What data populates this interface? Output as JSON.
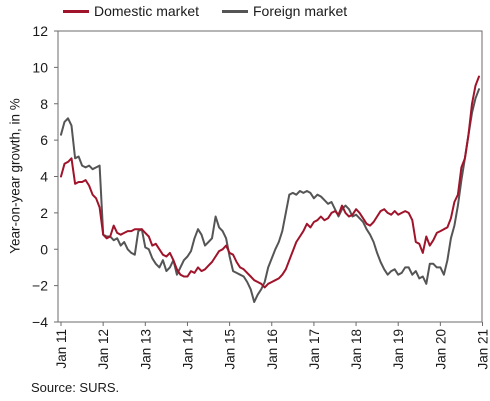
{
  "chart_data": {
    "type": "line",
    "title": "",
    "ylabel": "Year-on-year growth, in %",
    "ylim": [
      -4,
      12
    ],
    "yticks": [
      -4,
      -2,
      0,
      2,
      4,
      6,
      8,
      10,
      12
    ],
    "x_start": "Jan 11",
    "x_tick_labels": [
      "Jan 11",
      "Jan 12",
      "Jan 13",
      "Jan 14",
      "Jan 15",
      "Jan 16",
      "Jan 17",
      "Jan 18",
      "Jan 19",
      "Jan 20",
      "Jan 21"
    ],
    "grid": false,
    "legend_position": "top",
    "series": [
      {
        "name": "Domestic market",
        "color": "#a0142b",
        "values": [
          4.0,
          4.7,
          4.8,
          5.0,
          3.6,
          3.7,
          3.7,
          3.8,
          3.5,
          3.0,
          2.8,
          2.3,
          0.8,
          0.6,
          0.7,
          1.3,
          0.9,
          0.8,
          0.9,
          1.0,
          1.0,
          1.1,
          1.1,
          1.1,
          0.9,
          0.7,
          0.2,
          0.3,
          0.0,
          -0.3,
          -0.4,
          -0.2,
          -0.6,
          -1.1,
          -1.4,
          -1.5,
          -1.5,
          -1.2,
          -1.3,
          -1.0,
          -1.2,
          -1.1,
          -0.9,
          -0.7,
          -0.4,
          -0.1,
          0.0,
          0.2,
          -0.2,
          -0.3,
          -0.7,
          -1.0,
          -1.1,
          -1.3,
          -1.5,
          -1.7,
          -1.8,
          -1.9,
          -2.1,
          -1.9,
          -1.8,
          -1.7,
          -1.6,
          -1.4,
          -1.1,
          -0.6,
          -0.1,
          0.4,
          0.7,
          1.0,
          1.4,
          1.2,
          1.5,
          1.6,
          1.8,
          1.6,
          1.7,
          2.0,
          2.1,
          1.9,
          2.4,
          2.0,
          1.8,
          1.9,
          2.2,
          2.0,
          1.7,
          1.4,
          1.3,
          1.5,
          1.8,
          2.1,
          2.2,
          2.0,
          1.9,
          2.1,
          1.9,
          2.0,
          2.1,
          2.0,
          1.6,
          0.4,
          0.3,
          -0.2,
          0.7,
          0.2,
          0.5,
          0.9,
          1.0,
          1.1,
          1.2,
          1.7,
          2.6,
          3.0,
          4.5,
          5.0,
          6.3,
          8.0,
          9.0,
          9.5
        ]
      },
      {
        "name": "Foreign market",
        "color": "#555555",
        "values": [
          6.3,
          7.0,
          7.2,
          6.8,
          5.0,
          5.1,
          4.6,
          4.5,
          4.6,
          4.4,
          4.5,
          4.6,
          0.8,
          0.7,
          0.7,
          0.5,
          0.6,
          0.2,
          0.4,
          0.0,
          -0.2,
          -0.3,
          1.0,
          1.1,
          0.1,
          0.0,
          -0.5,
          -0.8,
          -1.0,
          -0.6,
          -1.2,
          -1.0,
          -0.6,
          -1.4,
          -1.0,
          -0.6,
          -0.4,
          -0.1,
          0.6,
          1.1,
          0.8,
          0.2,
          0.4,
          0.6,
          1.8,
          1.2,
          1.0,
          0.6,
          -0.4,
          -1.2,
          -1.3,
          -1.4,
          -1.5,
          -1.8,
          -2.2,
          -2.9,
          -2.5,
          -2.2,
          -1.8,
          -1.0,
          -0.5,
          0.0,
          0.4,
          1.0,
          2.0,
          3.0,
          3.1,
          3.0,
          3.2,
          3.1,
          3.2,
          3.1,
          2.8,
          3.0,
          2.9,
          2.7,
          2.5,
          2.6,
          2.2,
          1.8,
          2.2,
          2.4,
          2.2,
          1.8,
          1.9,
          1.7,
          1.5,
          1.1,
          0.8,
          0.4,
          -0.2,
          -0.7,
          -1.1,
          -1.4,
          -1.2,
          -1.1,
          -1.4,
          -1.3,
          -1.0,
          -1.0,
          -1.4,
          -1.2,
          -1.6,
          -1.5,
          -1.9,
          -0.8,
          -0.8,
          -1.0,
          -1.0,
          -1.4,
          -0.6,
          0.6,
          1.3,
          2.4,
          3.8,
          5.0,
          6.3,
          7.5,
          8.3,
          8.8
        ]
      }
    ]
  },
  "source": "Source: SURS."
}
